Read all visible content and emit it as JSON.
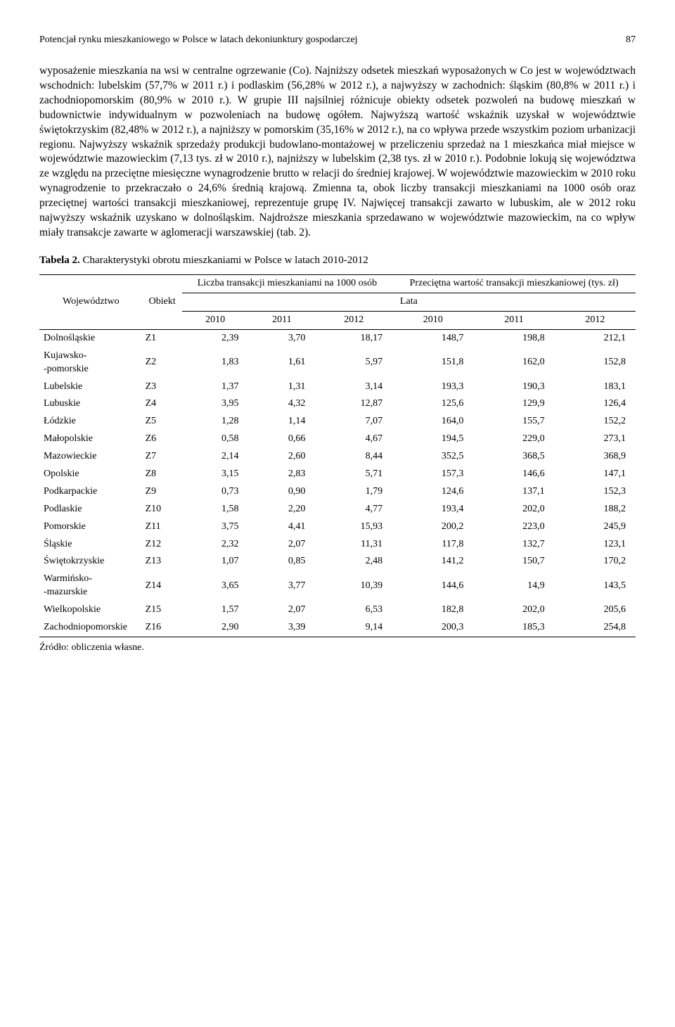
{
  "header": {
    "running_title": "Potencjał rynku mieszkaniowego w Polsce w latach dekoniunktury gospodarczej",
    "page_number": "87"
  },
  "paragraph": "wyposażenie mieszkania na wsi w centralne ogrzewanie (Co). Najniższy odsetek mieszkań wyposażonych w Co jest w województwach wschodnich: lubelskim (57,7% w 2011 r.) i podlaskim (56,28% w 2012 r.), a najwyższy w zachodnich: śląskim (80,8% w 2011 r.) i zachodniopomorskim (80,9% w 2010 r.). W grupie III najsilniej różnicuje obiekty odsetek pozwoleń na budowę mieszkań w budownictwie indywidualnym w pozwoleniach na budowę ogółem. Najwyższą wartość wskaźnik uzyskał w województwie świętokrzyskim (82,48% w 2012 r.), a najniższy w pomorskim (35,16% w 2012 r.), na co wpływa przede wszystkim poziom urbanizacji regionu. Najwyższy wskaźnik sprzedaży produkcji budowlano-montażowej w przeliczeniu sprzedaż na 1 mieszkańca miał miejsce w województwie mazowieckim (7,13 tys. zł w 2010 r.), najniższy w lubelskim (2,38 tys. zł w 2010 r.). Podobnie lokują się województwa ze względu na przeciętne miesięczne wynagrodzenie brutto w relacji do średniej krajowej. W województwie mazowieckim w 2010 roku wynagrodzenie to przekraczało o 24,6% średnią krajową. Zmienna ta, obok liczby transakcji mieszkaniami na 1000 osób oraz przeciętnej wartości transakcji mieszkaniowej, reprezentuje grupę IV. Najwięcej transakcji zawarto w lubuskim, ale w 2012 roku najwyższy wskaźnik uzyskano w dolnośląskim. Najdroższe mieszkania sprzedawano w województwie mazowieckim, na co wpływ miały transakcje zawarte w aglomeracji warszawskiej (tab. 2).",
  "table": {
    "caption_label": "Tabela 2.",
    "caption_text": " Charakterystyki obrotu mieszkaniami w Polsce w latach 2010-2012",
    "col_wojewodztwo": "Województwo",
    "col_obiekt": "Obiekt",
    "col_group1": "Liczba transakcji mieszkaniami na 1000 osób",
    "col_group2": "Przeciętna wartość transakcji mieszkaniowej (tys. zł)",
    "col_lata": "Lata",
    "years": [
      "2010",
      "2011",
      "2012",
      "2010",
      "2011",
      "2012"
    ],
    "rows": [
      {
        "name": "Dolnośląskie",
        "obj": "Z1",
        "v": [
          "2,39",
          "3,70",
          "18,17",
          "148,7",
          "198,8",
          "212,1"
        ]
      },
      {
        "name": "Kujawsko-\n-pomorskie",
        "obj": "Z2",
        "v": [
          "1,83",
          "1,61",
          "5,97",
          "151,8",
          "162,0",
          "152,8"
        ]
      },
      {
        "name": "Lubelskie",
        "obj": "Z3",
        "v": [
          "1,37",
          "1,31",
          "3,14",
          "193,3",
          "190,3",
          "183,1"
        ]
      },
      {
        "name": "Lubuskie",
        "obj": "Z4",
        "v": [
          "3,95",
          "4,32",
          "12,87",
          "125,6",
          "129,9",
          "126,4"
        ]
      },
      {
        "name": "Łódzkie",
        "obj": "Z5",
        "v": [
          "1,28",
          "1,14",
          "7,07",
          "164,0",
          "155,7",
          "152,2"
        ]
      },
      {
        "name": "Małopolskie",
        "obj": "Z6",
        "v": [
          "0,58",
          "0,66",
          "4,67",
          "194,5",
          "229,0",
          "273,1"
        ]
      },
      {
        "name": "Mazowieckie",
        "obj": "Z7",
        "v": [
          "2,14",
          "2,60",
          "8,44",
          "352,5",
          "368,5",
          "368,9"
        ]
      },
      {
        "name": "Opolskie",
        "obj": "Z8",
        "v": [
          "3,15",
          "2,83",
          "5,71",
          "157,3",
          "146,6",
          "147,1"
        ]
      },
      {
        "name": "Podkarpackie",
        "obj": "Z9",
        "v": [
          "0,73",
          "0,90",
          "1,79",
          "124,6",
          "137,1",
          "152,3"
        ]
      },
      {
        "name": "Podlaskie",
        "obj": "Z10",
        "v": [
          "1,58",
          "2,20",
          "4,77",
          "193,4",
          "202,0",
          "188,2"
        ]
      },
      {
        "name": "Pomorskie",
        "obj": "Z11",
        "v": [
          "3,75",
          "4,41",
          "15,93",
          "200,2",
          "223,0",
          "245,9"
        ]
      },
      {
        "name": "Śląskie",
        "obj": "Z12",
        "v": [
          "2,32",
          "2,07",
          "11,31",
          "117,8",
          "132,7",
          "123,1"
        ]
      },
      {
        "name": "Świętokrzyskie",
        "obj": "Z13",
        "v": [
          "1,07",
          "0,85",
          "2,48",
          "141,2",
          "150,7",
          "170,2"
        ]
      },
      {
        "name": "Warmińsko-\n-mazurskie",
        "obj": "Z14",
        "v": [
          "3,65",
          "3,77",
          "10,39",
          "144,6",
          "14,9",
          "143,5"
        ]
      },
      {
        "name": "Wielkopolskie",
        "obj": "Z15",
        "v": [
          "1,57",
          "2,07",
          "6,53",
          "182,8",
          "202,0",
          "205,6"
        ]
      },
      {
        "name": "Zachodniopomorskie",
        "obj": "Z16",
        "v": [
          "2,90",
          "3,39",
          "9,14",
          "200,3",
          "185,3",
          "254,8"
        ]
      }
    ],
    "source": "Źródło: obliczenia własne."
  }
}
